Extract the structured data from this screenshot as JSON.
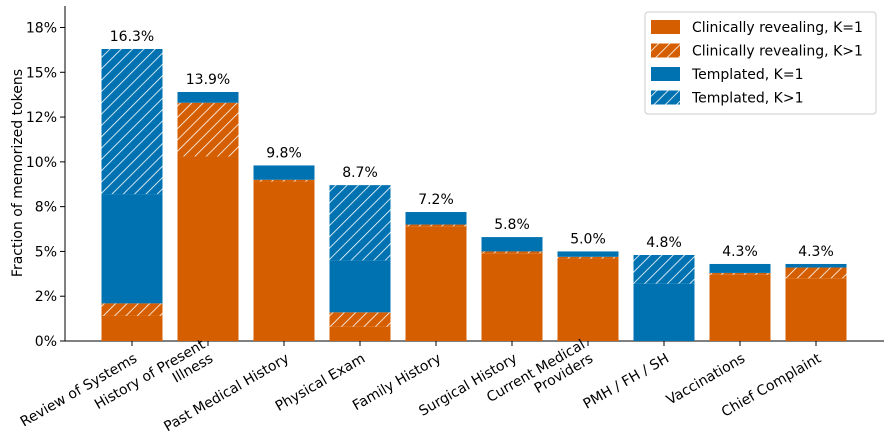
{
  "chart_data": {
    "type": "stacked_bar",
    "y_label": "Fraction of memorized tokens",
    "categories": [
      "Review of Systems",
      "History of Present\nIllness",
      "Past Medical History",
      "Physical Exam",
      "Family History",
      "Surgical History",
      "Current Medical\nProviders",
      "PMH / FH / SH",
      "Vaccinations",
      "Chief Complaint"
    ],
    "series": [
      {
        "name": "Clinically revealing, K=1",
        "color": "#d55e00",
        "hatch": false,
        "values": [
          1.4,
          10.3,
          8.9,
          0.8,
          6.4,
          4.9,
          4.6,
          0,
          3.7,
          3.5
        ]
      },
      {
        "name": "Clinically revealing, K>1",
        "color": "#d55e00",
        "hatch": true,
        "values": [
          0.7,
          3.0,
          0.1,
          0.8,
          0.1,
          0.1,
          0.1,
          0,
          0.1,
          0.6
        ]
      },
      {
        "name": "Templated, K=1",
        "color": "#0072b2",
        "hatch": false,
        "values": [
          6.1,
          0.6,
          0.8,
          2.9,
          0.7,
          0.8,
          0.3,
          3.2,
          0.5,
          0.2
        ]
      },
      {
        "name": "Templated, K>1",
        "color": "#0072b2",
        "hatch": true,
        "values": [
          8.1,
          0,
          0,
          4.2,
          0,
          0,
          0,
          1.6,
          0,
          0
        ]
      }
    ],
    "totals": [
      16.3,
      13.9,
      9.8,
      8.7,
      7.2,
      5.8,
      5.0,
      4.8,
      4.3,
      4.3
    ],
    "total_labels": [
      "16.3%",
      "13.9%",
      "9.8%",
      "8.7%",
      "7.2%",
      "5.8%",
      "5.0%",
      "4.8%",
      "4.3%",
      "4.3%"
    ],
    "ylim": [
      0,
      18.7
    ],
    "yticks": [
      {
        "value": 0,
        "label": "0%"
      },
      {
        "value": 2.5,
        "label": "2%"
      },
      {
        "value": 5,
        "label": "5%"
      },
      {
        "value": 7.5,
        "label": "8%"
      },
      {
        "value": 10,
        "label": "10%"
      },
      {
        "value": 12.5,
        "label": "12%"
      },
      {
        "value": 15,
        "label": "15%"
      },
      {
        "value": 17.5,
        "label": "18%"
      }
    ],
    "legend": "upper right",
    "grid": false
  }
}
